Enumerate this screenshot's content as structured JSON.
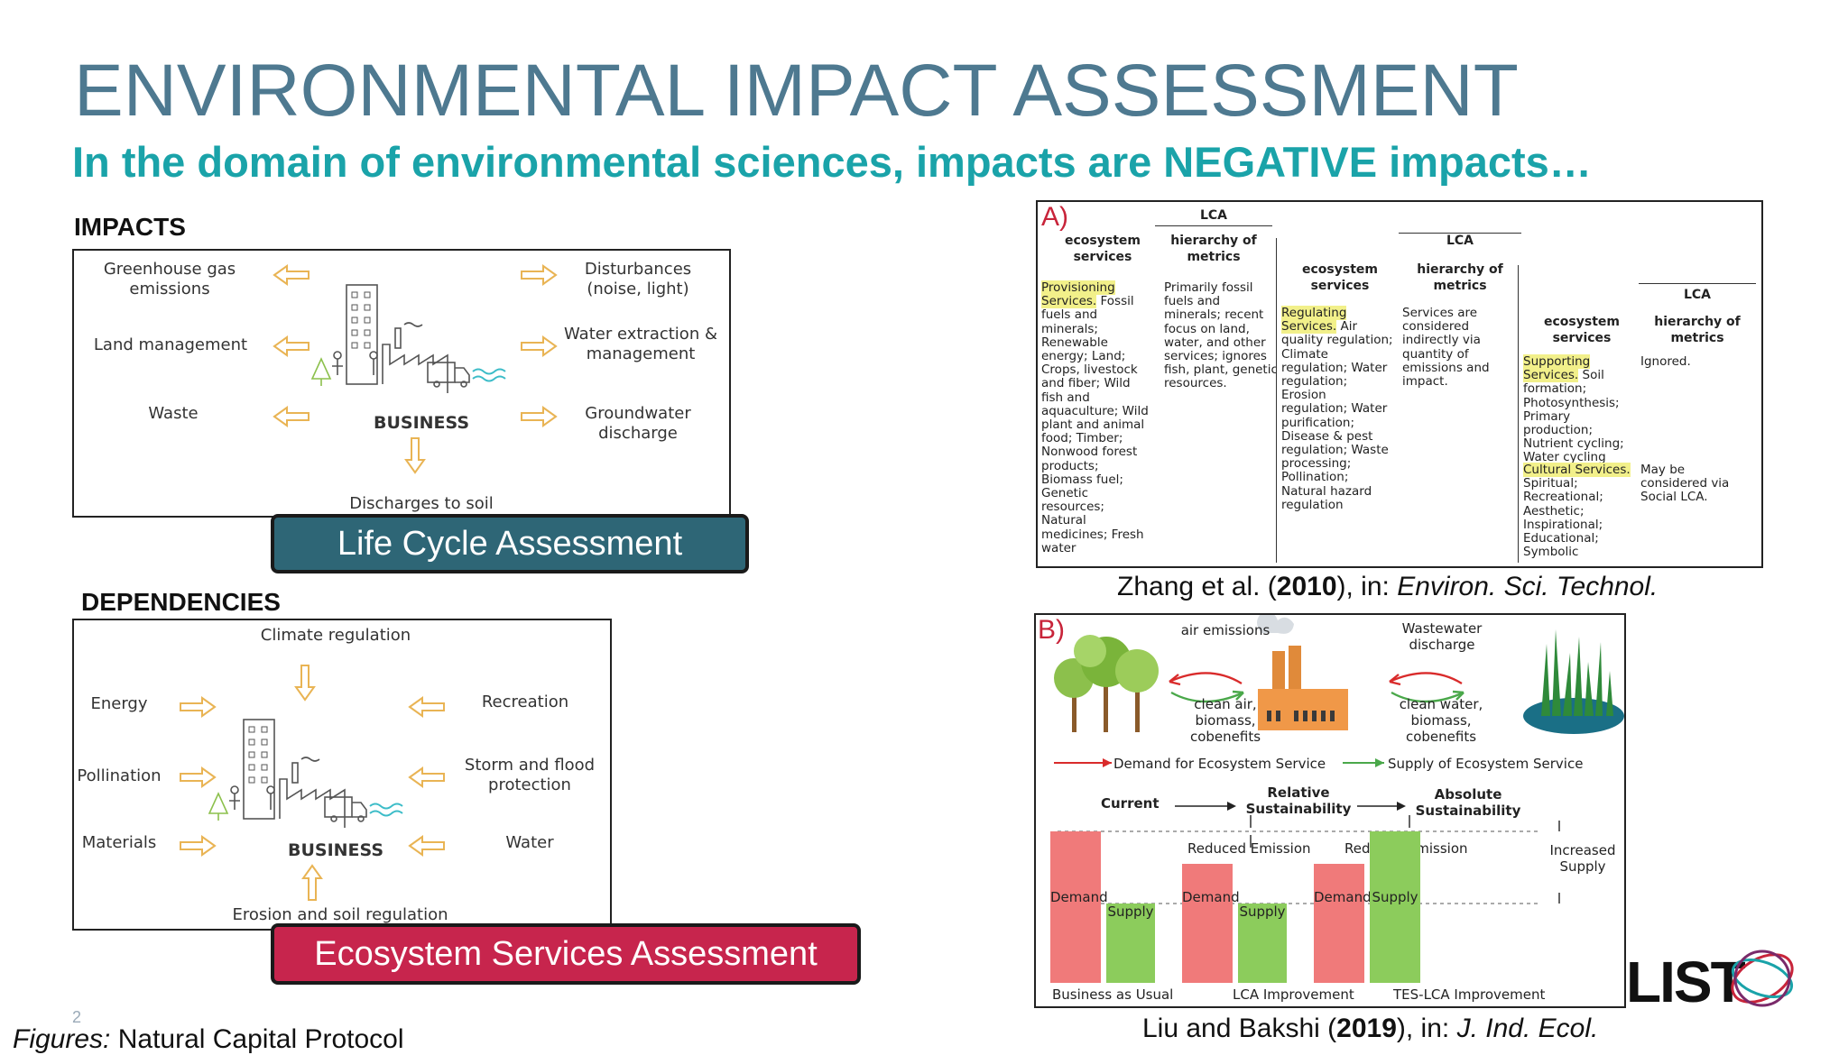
{
  "slide": {
    "title": "ENVIRONMENTAL IMPACT ASSESSMENT",
    "subtitle": "In the domain of environmental sciences, impacts are NEGATIVE impacts…",
    "page_number": "2",
    "footer_figures_label": "Figures:",
    "footer_figures_text": "Natural Capital Protocol",
    "logo_text": "LIST"
  },
  "impacts": {
    "heading": "IMPACTS",
    "greenhouse": "Greenhouse gas emissions",
    "land": "Land management",
    "waste": "Waste",
    "disturbances": "Disturbances (noise, light)",
    "water_extraction": "Water extraction & management",
    "groundwater": "Groundwater discharge",
    "business": "BUSINESS",
    "soil": "Discharges to soil",
    "button": "Life Cycle Assessment"
  },
  "dependencies": {
    "heading": "DEPENDENCIES",
    "climate": "Climate regulation",
    "energy": "Energy",
    "pollination": "Pollination",
    "materials": "Materials",
    "recreation": "Recreation",
    "storm": "Storm and flood protection",
    "water": "Water",
    "business": "BUSINESS",
    "erosion": "Erosion and soil regulation",
    "button": "Ecosystem Services Assessment"
  },
  "figA": {
    "panel_label": "A)",
    "lca": "LCA",
    "es_head": "ecosystem services",
    "hier_head": "hierarchy of metrics",
    "prov_hl": "Provisioning Services.",
    "prov_text": " Fossil fuels and minerals; Renewable energy; Land; Crops, livestock and fiber; Wild fish and aquaculture; Wild plant and animal food; Timber; Nonwood forest products; Biomass fuel; Genetic resources; Natural medicines; Fresh water",
    "prov_metric": "Primarily fossil fuels and minerals; recent focus on land, water, and other services; ignores fish, plant, genetic resources.",
    "reg_hl": "Regulating Services.",
    "reg_text": " Air quality regulation; Climate regulation; Water regulation; Erosion regulation; Water purification; Disease & pest regulation; Waste processing; Pollination; Natural hazard regulation",
    "reg_metric": "Services are considered indirectly via quantity of emissions and impact.",
    "sup_hl": "Supporting Services.",
    "sup_text": " Soil formation; Photosynthesis; Primary production; Nutrient cycling; Water cycling",
    "sup_metric": "Ignored.",
    "cult_hl": "Cultural Services.",
    "cult_text": " Spiritual; Recreational; Aesthetic; Inspirational; Educational; Symbolic",
    "cult_metric": "May be considered via Social LCA.",
    "caption_a": "Zhang et al. (",
    "caption_year": "2010",
    "caption_b": "), in: ",
    "caption_journal": "Environ. Sci. Technol."
  },
  "figB": {
    "panel_label": "B)",
    "air_emissions": "air emissions",
    "clean_air": "clean air, biomass, cobenefits",
    "wastewater": "Wastewater discharge",
    "clean_water": "clean water, biomass, cobenefits",
    "demand_legend": "Demand for Ecosystem Service",
    "supply_legend": "Supply of Ecosystem Service",
    "current": "Current",
    "relative": "Relative Sustainability",
    "absolute": "Absolute Sustainability",
    "reduced1": "Reduced Emission",
    "reduced2": "Reduced Emission",
    "increased": "Increased Supply",
    "demand": "Demand",
    "supply": "Supply",
    "bau": "Business as Usual",
    "lca_imp": "LCA Improvement",
    "tes_imp": "TES-LCA Improvement",
    "caption_a": "Liu and Bakshi (",
    "caption_year": "2019",
    "caption_b": "), in: ",
    "caption_journal": "J. Ind. Ecol.",
    "colors": {
      "demand": "#f07a7a",
      "supply": "#8ccc5c",
      "arrow_red": "#d92b2b",
      "arrow_green": "#4aa84a"
    }
  },
  "colors": {
    "title": "#4e7990",
    "subtitle": "#1aa3a9",
    "lca_button": "#2e6676",
    "esa_button": "#c7254d",
    "arrow_outline": "#e9b454"
  }
}
